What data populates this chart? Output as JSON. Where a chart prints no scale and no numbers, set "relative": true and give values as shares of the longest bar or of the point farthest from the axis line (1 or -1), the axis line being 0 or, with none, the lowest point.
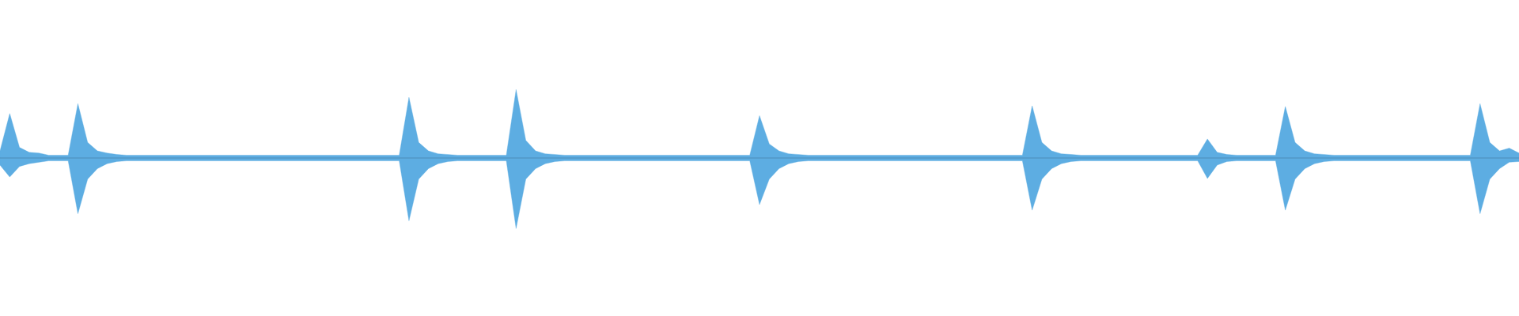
{
  "chart_data": {
    "type": "area",
    "relative": true,
    "categories": [
      null,
      null,
      null,
      null,
      null,
      null,
      null,
      null,
      null,
      null,
      null,
      null,
      null,
      null,
      null,
      null,
      null,
      null,
      null,
      null,
      null,
      null,
      null,
      null,
      null,
      null,
      null,
      null,
      null,
      null,
      null,
      null,
      null,
      null,
      null,
      null,
      null,
      null,
      null,
      null,
      null,
      null,
      null,
      null,
      null,
      null,
      null,
      null,
      null,
      null,
      null,
      null,
      null,
      null,
      null,
      null,
      null,
      null,
      null,
      null,
      null,
      null,
      null,
      null,
      null,
      null,
      null,
      null,
      null,
      null,
      null,
      null,
      null,
      null,
      null,
      null,
      null,
      null,
      null,
      null,
      null,
      null,
      null,
      null,
      null,
      null,
      null,
      null,
      null,
      null,
      null,
      null,
      null,
      null,
      null,
      null,
      null,
      null,
      null,
      null,
      null,
      null,
      null,
      null,
      null,
      null,
      null,
      null,
      null,
      null,
      null,
      null,
      null,
      null,
      null,
      null,
      null,
      null,
      null,
      null,
      null,
      null,
      null,
      null,
      null,
      null,
      null,
      null,
      null,
      null,
      null,
      null,
      null,
      null,
      null,
      null,
      null,
      null,
      null,
      null,
      null,
      null,
      null,
      null,
      null,
      null,
      null,
      null,
      null,
      null,
      null,
      null,
      null,
      null,
      null,
      null,
      null
    ],
    "series": [
      {
        "color": "#5dade2",
        "values": [
          0.1,
          0.63,
          0.15,
          0.08,
          0.07,
          0.04,
          0.04,
          0.04,
          0.77,
          0.22,
          0.1,
          0.07,
          0.05,
          0.04,
          0.04,
          0.04,
          0.04,
          0.04,
          0.04,
          0.04,
          0.04,
          0.04,
          0.04,
          0.04,
          0.04,
          0.04,
          0.04,
          0.04,
          0.04,
          0.04,
          0.04,
          0.04,
          0.04,
          0.04,
          0.04,
          0.04,
          0.04,
          0.04,
          0.04,
          0.04,
          0.04,
          0.04,
          0.86,
          0.22,
          0.1,
          0.06,
          0.05,
          0.04,
          0.04,
          0.04,
          0.04,
          0.04,
          0.04,
          0.97,
          0.25,
          0.1,
          0.06,
          0.05,
          0.04,
          0.04,
          0.04,
          0.04,
          0.04,
          0.04,
          0.04,
          0.04,
          0.04,
          0.04,
          0.04,
          0.04,
          0.04,
          0.04,
          0.04,
          0.04,
          0.04,
          0.04,
          0.04,
          0.04,
          0.6,
          0.2,
          0.1,
          0.06,
          0.05,
          0.04,
          0.04,
          0.04,
          0.04,
          0.04,
          0.04,
          0.04,
          0.04,
          0.04,
          0.04,
          0.04,
          0.04,
          0.04,
          0.04,
          0.04,
          0.04,
          0.04,
          0.04,
          0.04,
          0.04,
          0.04,
          0.04,
          0.04,
          0.74,
          0.22,
          0.1,
          0.06,
          0.05,
          0.04,
          0.04,
          0.04,
          0.04,
          0.04,
          0.04,
          0.04,
          0.04,
          0.04,
          0.04,
          0.04,
          0.04,
          0.04,
          0.27,
          0.08,
          0.05,
          0.04,
          0.04,
          0.04,
          0.04,
          0.04,
          0.73,
          0.22,
          0.1,
          0.06,
          0.05,
          0.04,
          0.04,
          0.04,
          0.04,
          0.04,
          0.04,
          0.04,
          0.04,
          0.04,
          0.04,
          0.04,
          0.04,
          0.04,
          0.04,
          0.04,
          0.77,
          0.22,
          0.1,
          0.14,
          0.07
        ]
      },
      {
        "color": "#5dade2",
        "values": [
          -0.1,
          -0.27,
          -0.12,
          -0.08,
          -0.06,
          -0.04,
          -0.04,
          -0.04,
          -0.79,
          -0.3,
          -0.15,
          -0.08,
          -0.05,
          -0.04,
          -0.04,
          -0.04,
          -0.04,
          -0.04,
          -0.04,
          -0.04,
          -0.04,
          -0.04,
          -0.04,
          -0.04,
          -0.04,
          -0.04,
          -0.04,
          -0.04,
          -0.04,
          -0.04,
          -0.04,
          -0.04,
          -0.04,
          -0.04,
          -0.04,
          -0.04,
          -0.04,
          -0.04,
          -0.04,
          -0.04,
          -0.04,
          -0.04,
          -0.89,
          -0.3,
          -0.15,
          -0.08,
          -0.05,
          -0.04,
          -0.04,
          -0.04,
          -0.04,
          -0.04,
          -0.04,
          -1,
          -0.3,
          -0.15,
          -0.08,
          -0.05,
          -0.04,
          -0.04,
          -0.04,
          -0.04,
          -0.04,
          -0.04,
          -0.04,
          -0.04,
          -0.04,
          -0.04,
          -0.04,
          -0.04,
          -0.04,
          -0.04,
          -0.04,
          -0.04,
          -0.04,
          -0.04,
          -0.04,
          -0.04,
          -0.66,
          -0.3,
          -0.15,
          -0.08,
          -0.05,
          -0.04,
          -0.04,
          -0.04,
          -0.04,
          -0.04,
          -0.04,
          -0.04,
          -0.04,
          -0.04,
          -0.04,
          -0.04,
          -0.04,
          -0.04,
          -0.04,
          -0.04,
          -0.04,
          -0.04,
          -0.04,
          -0.04,
          -0.04,
          -0.04,
          -0.04,
          -0.04,
          -0.74,
          -0.3,
          -0.15,
          -0.08,
          -0.05,
          -0.04,
          -0.04,
          -0.04,
          -0.04,
          -0.04,
          -0.04,
          -0.04,
          -0.04,
          -0.04,
          -0.04,
          -0.04,
          -0.04,
          -0.04,
          -0.29,
          -0.1,
          -0.05,
          -0.04,
          -0.04,
          -0.04,
          -0.04,
          -0.04,
          -0.74,
          -0.3,
          -0.15,
          -0.08,
          -0.05,
          -0.04,
          -0.04,
          -0.04,
          -0.04,
          -0.04,
          -0.04,
          -0.04,
          -0.04,
          -0.04,
          -0.04,
          -0.04,
          -0.04,
          -0.04,
          -0.04,
          -0.04,
          -0.79,
          -0.3,
          -0.15,
          -0.06,
          -0.05
        ]
      }
    ]
  }
}
